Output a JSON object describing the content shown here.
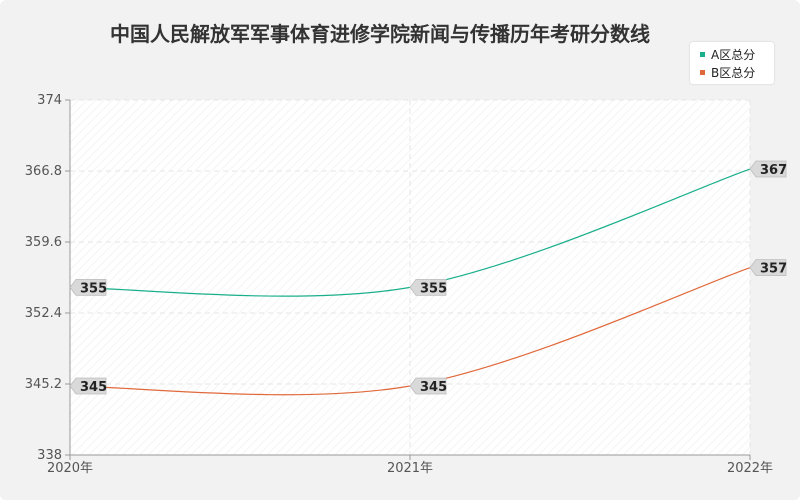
{
  "chart_data": {
    "type": "line",
    "title": "中国人民解放军军事体育进修学院新闻与传播历年考研分数线",
    "categories": [
      "2020年",
      "2021年",
      "2022年"
    ],
    "y_ticks": [
      "374",
      "366.8",
      "359.6",
      "352.4",
      "345.2",
      "338"
    ],
    "ylim": [
      338,
      374
    ],
    "grid": true,
    "legend_position": "top-right",
    "series": [
      {
        "name": "A区总分",
        "values": [
          355,
          355,
          367
        ],
        "labels": [
          "355",
          "355",
          "367"
        ],
        "color": "#1aaf8b"
      },
      {
        "name": "B区总分",
        "values": [
          345,
          345,
          357
        ],
        "labels": [
          "345",
          "345",
          "357"
        ],
        "color": "#e0693b"
      }
    ]
  }
}
